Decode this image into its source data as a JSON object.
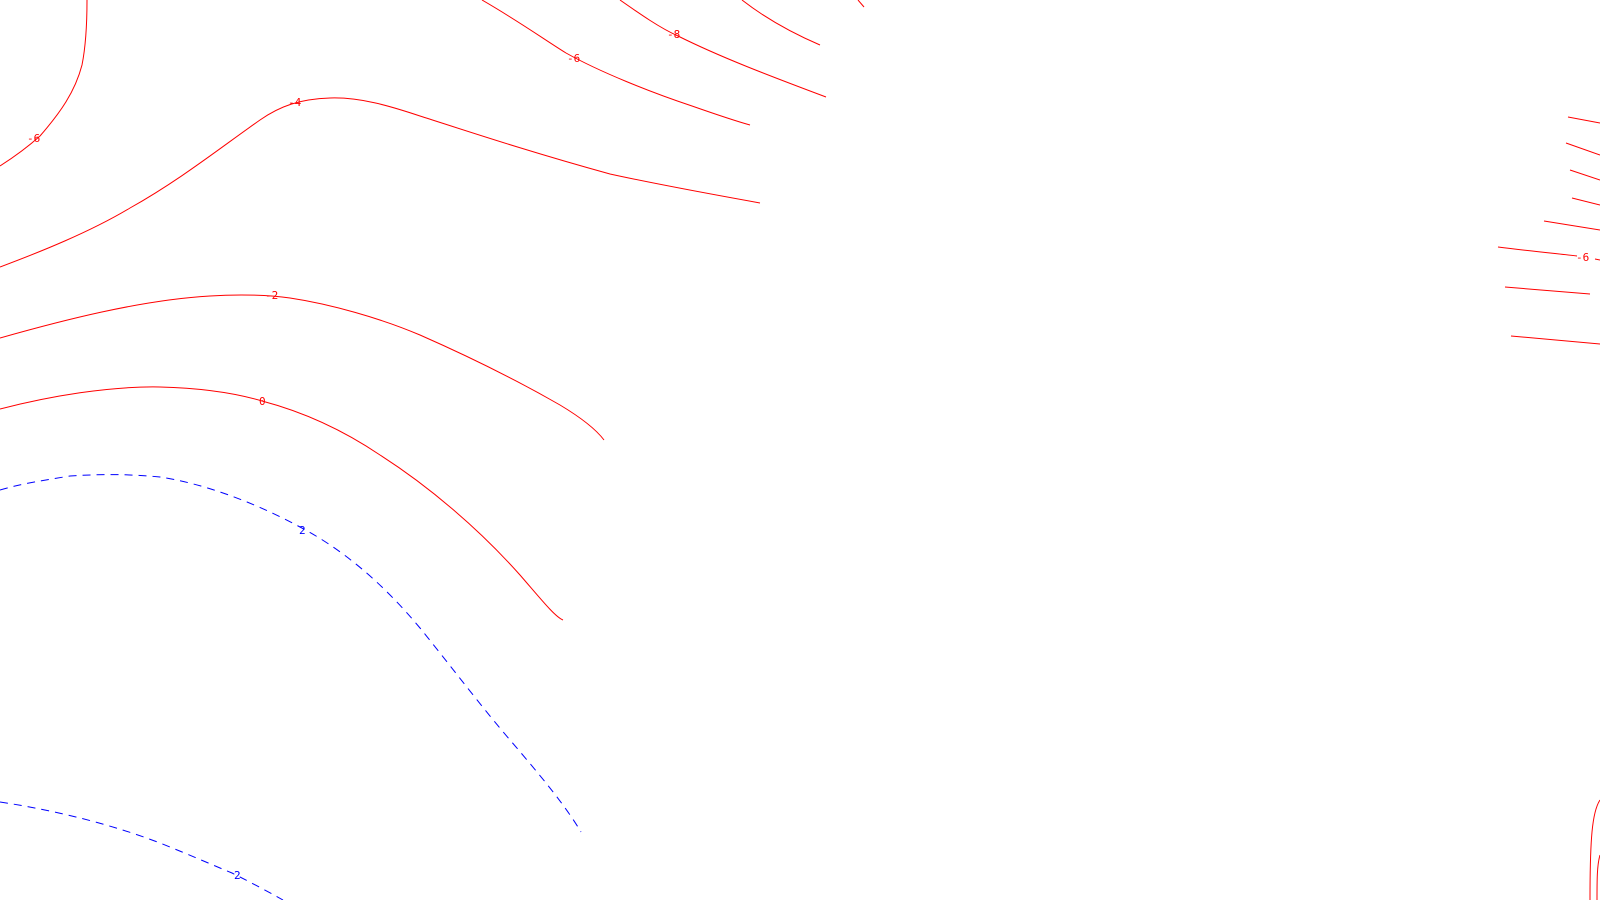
{
  "colors": {
    "negative": "#ff0000",
    "positive": "#0000ff",
    "background": "#ffffff"
  },
  "contours": [
    {
      "id": "neg6-left",
      "level": "-6",
      "sign": "negative"
    },
    {
      "id": "neg8-top",
      "level": "-8",
      "sign": "negative"
    },
    {
      "id": "neg8-top-b",
      "level": "",
      "sign": "negative"
    },
    {
      "id": "neg6-top",
      "level": "-6",
      "sign": "negative"
    },
    {
      "id": "neg4",
      "level": "-4",
      "sign": "negative"
    },
    {
      "id": "neg2",
      "level": "-2",
      "sign": "negative"
    },
    {
      "id": "zero",
      "level": "0",
      "sign": "negative"
    },
    {
      "id": "pos2-a",
      "level": "2",
      "sign": "positive"
    },
    {
      "id": "pos2-b",
      "level": "2",
      "sign": "positive"
    },
    {
      "id": "neg6-right",
      "level": "-6",
      "sign": "negative"
    },
    {
      "id": "right-bottom-arc",
      "level": "",
      "sign": "negative"
    }
  ]
}
